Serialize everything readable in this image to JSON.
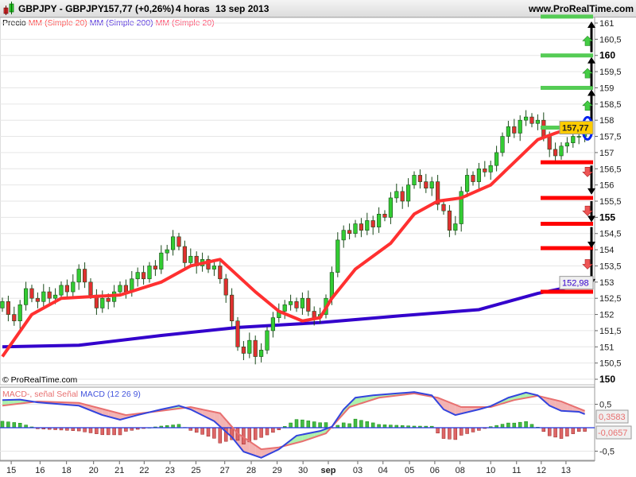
{
  "header": {
    "symbol": "GBPJPY - GBPJPY",
    "price_change": "157,77 (+0,26%)",
    "timeframe": "4 horas",
    "date": "13 sep 2013",
    "site": "www.ProRealTime.com"
  },
  "legend": {
    "price": "Precio",
    "ma1": "MM (Simple 20)",
    "ma2": "MM (Simple 200)",
    "ma3": "MM (Simple 20)"
  },
  "copyright": "© ProRealTime.com",
  "macd_legend": {
    "a": "MACD-, señal",
    "b": "Señal",
    "c": "MACD (12 26 9)"
  },
  "colors": {
    "up": "#33cc33",
    "down": "#e03030",
    "ma20": "#ff3030",
    "ma200": "#3300cc",
    "macd": "#3344dd",
    "signal": "#e87070"
  },
  "chart_data": [
    {
      "type": "candlestick",
      "title": "GBPJPY - GBPJPY 4 horas",
      "ylim": [
        150,
        161
      ],
      "y_ticks": [
        "161",
        "160,5",
        "160",
        "159,5",
        "159",
        "158,5",
        "158",
        "157,5",
        "157",
        "156,5",
        "156",
        "155,5",
        "155",
        "154,5",
        "154",
        "153,5",
        "153",
        "152,5",
        "152",
        "151,5",
        "151",
        "150,5",
        "150"
      ],
      "x_ticks": [
        {
          "i": 1.5,
          "label": "15"
        },
        {
          "i": 6.4,
          "label": "16"
        },
        {
          "i": 10.9,
          "label": "18"
        },
        {
          "i": 15.5,
          "label": "20"
        },
        {
          "i": 19.9,
          "label": "21"
        },
        {
          "i": 24.1,
          "label": "22"
        },
        {
          "i": 28.5,
          "label": "23"
        },
        {
          "i": 32.9,
          "label": "25"
        },
        {
          "i": 37.8,
          "label": "27"
        },
        {
          "i": 42.3,
          "label": "28"
        },
        {
          "i": 46.7,
          "label": "29"
        },
        {
          "i": 51.1,
          "label": "30"
        },
        {
          "i": 55.4,
          "label": "sep"
        },
        {
          "i": 60.4,
          "label": "03"
        },
        {
          "i": 64.7,
          "label": "04"
        },
        {
          "i": 69.2,
          "label": "05"
        },
        {
          "i": 73.5,
          "label": "06"
        },
        {
          "i": 77.8,
          "label": "08"
        },
        {
          "i": 83,
          "label": "10"
        },
        {
          "i": 87.4,
          "label": "11"
        },
        {
          "i": 91.6,
          "label": "12"
        },
        {
          "i": 95.8,
          "label": "13"
        }
      ],
      "closes": [
        152.4,
        152.0,
        151.8,
        152.3,
        152.8,
        152.5,
        152.4,
        152.7,
        152.5,
        152.6,
        152.9,
        152.7,
        153.0,
        153.4,
        153.0,
        152.6,
        152.2,
        152.5,
        152.4,
        152.7,
        152.9,
        152.7,
        153.1,
        153.3,
        153.1,
        153.5,
        153.4,
        153.9,
        154.0,
        154.4,
        154.1,
        153.6,
        153.8,
        153.5,
        153.7,
        153.4,
        153.5,
        153.1,
        152.6,
        151.8,
        151.0,
        150.8,
        151.2,
        150.7,
        150.9,
        151.5,
        151.9,
        152.1,
        152.3,
        152.4,
        152.2,
        152.5,
        152.1,
        151.9,
        152.0,
        152.5,
        153.3,
        154.3,
        154.6,
        154.5,
        154.8,
        154.6,
        154.9,
        154.7,
        155.1,
        155.0,
        155.6,
        155.8,
        155.5,
        156.0,
        156.3,
        156.1,
        155.9,
        156.1,
        155.4,
        155.2,
        154.6,
        154.8,
        155.8,
        156.3,
        156.1,
        156.5,
        156.4,
        156.6,
        157.0,
        157.5,
        157.8,
        157.6,
        158.0,
        158.1,
        157.9,
        158.0,
        157.5,
        157.1,
        156.9,
        157.2,
        157.3,
        157.5,
        157.5,
        157.77
      ],
      "first_open": 152.2,
      "ma20": [
        [
          0,
          150.7
        ],
        [
          5,
          152.0
        ],
        [
          10,
          152.5
        ],
        [
          20,
          152.6
        ],
        [
          27,
          153.0
        ],
        [
          32,
          153.5
        ],
        [
          37,
          153.7
        ],
        [
          40,
          153.2
        ],
        [
          43,
          152.7
        ],
        [
          47,
          152.1
        ],
        [
          51,
          151.8
        ],
        [
          54,
          151.9
        ],
        [
          56,
          152.5
        ],
        [
          60,
          153.4
        ],
        [
          66,
          154.2
        ],
        [
          70,
          155.1
        ],
        [
          74,
          155.5
        ],
        [
          78,
          155.6
        ],
        [
          83,
          156.0
        ],
        [
          87,
          156.7
        ],
        [
          91,
          157.4
        ],
        [
          94,
          157.6
        ],
        [
          99,
          157.9
        ]
      ],
      "ma200": [
        [
          0,
          151.0
        ],
        [
          13,
          151.05
        ],
        [
          27,
          151.35
        ],
        [
          40,
          151.6
        ],
        [
          54,
          151.75
        ],
        [
          67,
          151.95
        ],
        [
          81,
          152.15
        ],
        [
          91,
          152.65
        ],
        [
          100,
          152.98
        ]
      ],
      "ma200_label": "152,98",
      "last_label": "157,77",
      "support_levels": [
        156.7,
        155.6,
        154.8,
        154.05,
        152.7
      ],
      "resistance_levels": [
        161.2,
        160.0,
        159.0,
        157.77
      ]
    },
    {
      "type": "macd",
      "title": "MACD (12 26 9)",
      "ylim": [
        -0.75,
        0.85
      ],
      "y_ticks": [
        {
          "v": 0.5,
          "label": "0,5"
        },
        {
          "v": -0.5,
          "label": "-0,5"
        }
      ],
      "macd": [
        [
          0,
          0.59
        ],
        [
          3,
          0.6
        ],
        [
          6,
          0.54
        ],
        [
          13,
          0.47
        ],
        [
          17,
          0.27
        ],
        [
          20,
          0.17
        ],
        [
          23,
          0.27
        ],
        [
          27,
          0.39
        ],
        [
          30,
          0.47
        ],
        [
          32,
          0.39
        ],
        [
          36,
          0.14
        ],
        [
          39,
          -0.2
        ],
        [
          41,
          -0.51
        ],
        [
          44,
          -0.64
        ],
        [
          47,
          -0.46
        ],
        [
          50,
          -0.17
        ],
        [
          54,
          -0.07
        ],
        [
          56,
          0.02
        ],
        [
          58,
          0.39
        ],
        [
          60,
          0.64
        ],
        [
          63,
          0.69
        ],
        [
          67,
          0.73
        ],
        [
          70,
          0.76
        ],
        [
          73,
          0.69
        ],
        [
          75,
          0.39
        ],
        [
          77,
          0.27
        ],
        [
          81,
          0.39
        ],
        [
          83,
          0.46
        ],
        [
          86,
          0.64
        ],
        [
          89,
          0.75
        ],
        [
          91,
          0.69
        ],
        [
          93,
          0.47
        ],
        [
          95,
          0.36
        ],
        [
          98,
          0.34
        ],
        [
          99,
          0.29
        ]
      ],
      "signal": [
        [
          0,
          0.47
        ],
        [
          6,
          0.56
        ],
        [
          13,
          0.53
        ],
        [
          21,
          0.27
        ],
        [
          27,
          0.36
        ],
        [
          32,
          0.44
        ],
        [
          37,
          0.31
        ],
        [
          40,
          -0.12
        ],
        [
          44,
          -0.46
        ],
        [
          47,
          -0.42
        ],
        [
          51,
          -0.29
        ],
        [
          55,
          -0.12
        ],
        [
          59,
          0.44
        ],
        [
          64,
          0.64
        ],
        [
          70,
          0.73
        ],
        [
          74,
          0.64
        ],
        [
          78,
          0.44
        ],
        [
          83,
          0.44
        ],
        [
          87,
          0.59
        ],
        [
          91,
          0.68
        ],
        [
          95,
          0.56
        ],
        [
          99,
          0.3583
        ]
      ],
      "signal_label": "0,3583",
      "hist_label": "-0,0657"
    }
  ]
}
